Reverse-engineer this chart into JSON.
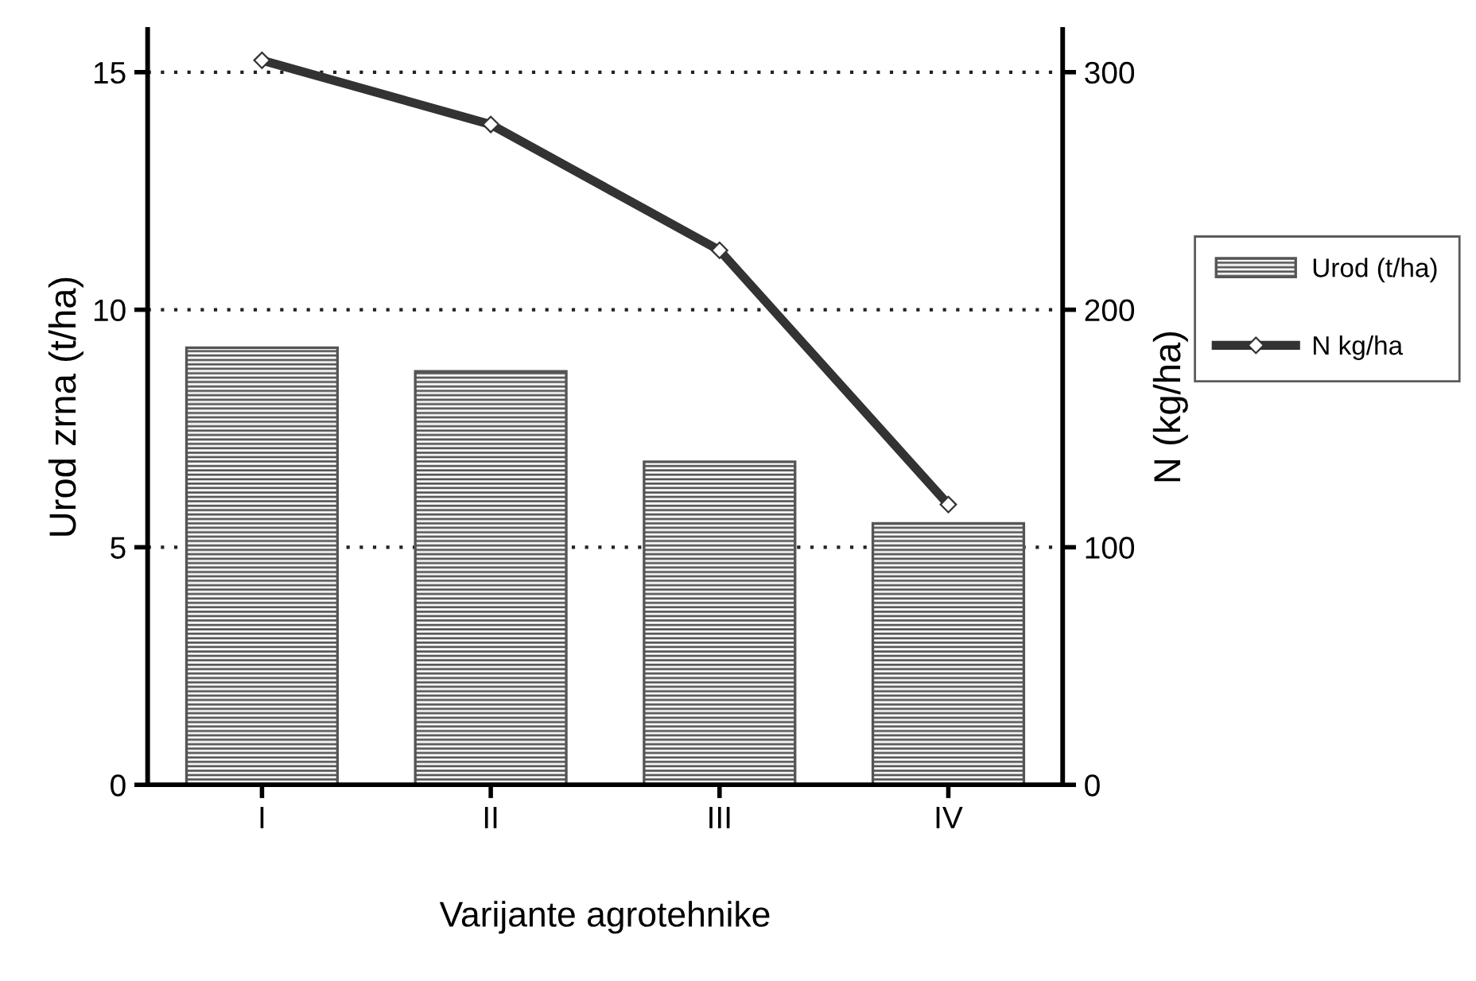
{
  "chart_data": {
    "type": "bar",
    "xlabel": "Varijante agrotehnike",
    "ylabel": "Urod zrna (t/ha)",
    "y2label": "N (kg/ha)",
    "categories": [
      "I",
      "II",
      "III",
      "IV"
    ],
    "series": [
      {
        "name": "Urod (t/ha)",
        "color": "#555555",
        "values": [
          9.2,
          8.7,
          6.8,
          5.5
        ]
      },
      {
        "name": "N kg/ha",
        "type": "line",
        "axis": "y2",
        "color": "#333333",
        "marker": "diamond",
        "values": [
          305,
          278,
          225,
          118
        ]
      }
    ],
    "ylim": [
      0,
      15.9
    ],
    "yticks": [
      0,
      5,
      10,
      15
    ],
    "y2lim": [
      0,
      318
    ],
    "y2ticks": [
      0,
      100,
      200,
      300
    ],
    "grid": "y",
    "legend": "right"
  }
}
